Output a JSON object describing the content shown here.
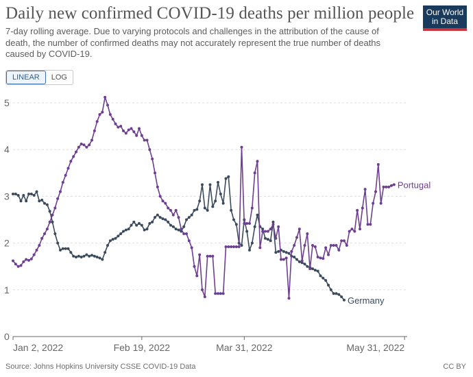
{
  "header": {
    "title": "Daily new confirmed COVID-19 deaths per million people",
    "subtitle": "7-day rolling average. Due to varying protocols and challenges in the attribution of the cause of death, the number of confirmed deaths may not accurately represent the true number of deaths caused by COVID-19."
  },
  "logo": {
    "line1": "Our World",
    "line2": "in Data"
  },
  "controls": {
    "linear_label": "LINEAR",
    "log_label": "LOG",
    "selected": "LINEAR"
  },
  "footer": {
    "source": "Source: Johns Hopkins University CSSE COVID-19 Data",
    "license": "CC BY"
  },
  "colors": {
    "Portugal": "#6d3e91",
    "Germany": "#3b4a5c",
    "grid": "#dddddd",
    "axis": "#666666"
  },
  "chart_data": {
    "type": "line",
    "title": "Daily new confirmed COVID-19 deaths per million people",
    "xlabel": "",
    "ylabel": "",
    "ylim": [
      0,
      5
    ],
    "yticks": [
      0,
      1,
      2,
      3,
      4,
      5
    ],
    "grid": "horizontal-dashed",
    "legend": "end-of-line labels",
    "xticks": [
      {
        "day": 1,
        "label": "Jan 2, 2022"
      },
      {
        "day": 50,
        "label": "Feb 19, 2022"
      },
      {
        "day": 89,
        "label": "Mar 31, 2022"
      },
      {
        "day": 150,
        "label": "May 31, 2022"
      }
    ],
    "x_range_days": [
      1,
      151
    ],
    "series": [
      {
        "name": "Portugal",
        "points": [
          [
            1,
            1.62
          ],
          [
            2,
            1.55
          ],
          [
            3,
            1.5
          ],
          [
            4,
            1.52
          ],
          [
            5,
            1.6
          ],
          [
            6,
            1.65
          ],
          [
            7,
            1.63
          ],
          [
            8,
            1.66
          ],
          [
            9,
            1.75
          ],
          [
            10,
            1.85
          ],
          [
            11,
            1.95
          ],
          [
            12,
            2.1
          ],
          [
            13,
            2.2
          ],
          [
            14,
            2.3
          ],
          [
            15,
            2.45
          ],
          [
            16,
            2.6
          ],
          [
            17,
            2.75
          ],
          [
            18,
            2.95
          ],
          [
            19,
            3.1
          ],
          [
            20,
            3.3
          ],
          [
            21,
            3.45
          ],
          [
            22,
            3.6
          ],
          [
            23,
            3.75
          ],
          [
            24,
            3.85
          ],
          [
            25,
            3.95
          ],
          [
            26,
            4.05
          ],
          [
            27,
            4.12
          ],
          [
            28,
            4.1
          ],
          [
            29,
            4.05
          ],
          [
            30,
            4.1
          ],
          [
            31,
            4.2
          ],
          [
            32,
            4.4
          ],
          [
            33,
            4.6
          ],
          [
            34,
            4.75
          ],
          [
            35,
            4.8
          ],
          [
            36,
            5.12
          ],
          [
            37,
            4.95
          ],
          [
            38,
            4.75
          ],
          [
            39,
            4.65
          ],
          [
            40,
            4.55
          ],
          [
            41,
            4.48
          ],
          [
            42,
            4.5
          ],
          [
            43,
            4.4
          ],
          [
            44,
            4.35
          ],
          [
            45,
            4.42
          ],
          [
            46,
            4.45
          ],
          [
            47,
            4.38
          ],
          [
            48,
            4.3
          ],
          [
            49,
            4.45
          ],
          [
            50,
            4.3
          ],
          [
            51,
            4.2
          ],
          [
            52,
            4.2
          ],
          [
            53,
            4.0
          ],
          [
            54,
            3.8
          ],
          [
            55,
            3.5
          ],
          [
            56,
            3.2
          ],
          [
            57,
            3.0
          ],
          [
            58,
            2.9
          ],
          [
            59,
            2.85
          ],
          [
            60,
            2.75
          ],
          [
            61,
            2.7
          ],
          [
            62,
            2.6
          ],
          [
            63,
            2.7
          ],
          [
            64,
            2.55
          ],
          [
            65,
            2.3
          ],
          [
            66,
            2.2
          ],
          [
            67,
            2.2
          ],
          [
            68,
            2.05
          ],
          [
            69,
            1.9
          ],
          [
            70,
            1.5
          ],
          [
            71,
            1.3
          ],
          [
            72,
            1.75
          ],
          [
            73,
            1.0
          ],
          [
            74,
            0.85
          ],
          [
            75,
            1.72
          ],
          [
            76,
            1.72
          ],
          [
            77,
            1.72
          ],
          [
            78,
            0.92
          ],
          [
            79,
            0.92
          ],
          [
            80,
            0.92
          ],
          [
            81,
            0.92
          ],
          [
            82,
            1.92
          ],
          [
            83,
            1.92
          ],
          [
            84,
            1.92
          ],
          [
            85,
            1.92
          ],
          [
            86,
            1.92
          ],
          [
            87,
            1.92
          ],
          [
            88,
            4.05
          ],
          [
            89,
            2.42
          ],
          [
            90,
            2.42
          ],
          [
            91,
            2.42
          ],
          [
            92,
            2.75
          ],
          [
            93,
            3.5
          ],
          [
            94,
            3.75
          ],
          [
            95,
            1.9
          ],
          [
            96,
            2.25
          ],
          [
            97,
            2.25
          ],
          [
            98,
            2.25
          ],
          [
            99,
            2.3
          ],
          [
            100,
            2.4
          ],
          [
            101,
            2.1
          ],
          [
            102,
            2.35
          ],
          [
            103,
            1.65
          ],
          [
            104,
            1.65
          ],
          [
            105,
            1.68
          ],
          [
            106,
            0.82
          ],
          [
            107,
            1.82
          ],
          [
            108,
            1.95
          ],
          [
            109,
            2.12
          ],
          [
            110,
            2.3
          ],
          [
            111,
            1.62
          ],
          [
            112,
            1.95
          ],
          [
            113,
            2.2
          ],
          [
            114,
            1.45
          ],
          [
            115,
            1.95
          ],
          [
            116,
            1.92
          ],
          [
            117,
            1.7
          ],
          [
            118,
            1.68
          ],
          [
            119,
            1.67
          ],
          [
            120,
            1.9
          ],
          [
            121,
            1.75
          ],
          [
            122,
            1.95
          ],
          [
            123,
            1.95
          ],
          [
            124,
            1.95
          ],
          [
            125,
            1.85
          ],
          [
            126,
            2.05
          ],
          [
            127,
            2.05
          ],
          [
            128,
            1.95
          ],
          [
            129,
            2.25
          ],
          [
            130,
            2.3
          ],
          [
            131,
            2.25
          ],
          [
            132,
            2.7
          ],
          [
            133,
            2.3
          ],
          [
            134,
            2.75
          ],
          [
            135,
            3.15
          ],
          [
            136,
            2.4
          ],
          [
            137,
            2.4
          ],
          [
            138,
            2.85
          ],
          [
            139,
            3.1
          ],
          [
            140,
            3.68
          ],
          [
            141,
            2.85
          ],
          [
            142,
            3.2
          ],
          [
            143,
            3.2
          ],
          [
            144,
            3.2
          ],
          [
            145,
            3.23
          ],
          [
            146,
            3.25
          ]
        ]
      },
      {
        "name": "Germany",
        "points": [
          [
            1,
            3.05
          ],
          [
            2,
            3.05
          ],
          [
            3,
            3.02
          ],
          [
            4,
            2.9
          ],
          [
            5,
            3.02
          ],
          [
            6,
            2.9
          ],
          [
            7,
            3.05
          ],
          [
            8,
            3.05
          ],
          [
            9,
            3.02
          ],
          [
            10,
            3.1
          ],
          [
            11,
            2.9
          ],
          [
            12,
            2.92
          ],
          [
            13,
            2.85
          ],
          [
            14,
            2.82
          ],
          [
            15,
            2.68
          ],
          [
            16,
            2.45
          ],
          [
            17,
            2.2
          ],
          [
            18,
            2.0
          ],
          [
            19,
            1.85
          ],
          [
            20,
            1.88
          ],
          [
            21,
            1.88
          ],
          [
            22,
            1.88
          ],
          [
            23,
            1.8
          ],
          [
            24,
            1.72
          ],
          [
            25,
            1.7
          ],
          [
            26,
            1.72
          ],
          [
            27,
            1.7
          ],
          [
            28,
            1.72
          ],
          [
            29,
            1.75
          ],
          [
            30,
            1.72
          ],
          [
            31,
            1.74
          ],
          [
            32,
            1.72
          ],
          [
            33,
            1.7
          ],
          [
            34,
            1.68
          ],
          [
            35,
            1.65
          ],
          [
            36,
            1.8
          ],
          [
            37,
            1.95
          ],
          [
            38,
            2.05
          ],
          [
            39,
            2.08
          ],
          [
            40,
            2.1
          ],
          [
            41,
            2.15
          ],
          [
            42,
            2.2
          ],
          [
            43,
            2.25
          ],
          [
            44,
            2.28
          ],
          [
            45,
            2.3
          ],
          [
            46,
            2.38
          ],
          [
            47,
            2.45
          ],
          [
            48,
            2.38
          ],
          [
            49,
            2.42
          ],
          [
            50,
            2.38
          ],
          [
            51,
            2.28
          ],
          [
            52,
            2.3
          ],
          [
            53,
            2.42
          ],
          [
            54,
            2.45
          ],
          [
            55,
            2.55
          ],
          [
            56,
            2.6
          ],
          [
            57,
            2.55
          ],
          [
            58,
            2.52
          ],
          [
            59,
            2.5
          ],
          [
            60,
            2.45
          ],
          [
            61,
            2.38
          ],
          [
            62,
            2.35
          ],
          [
            63,
            2.3
          ],
          [
            64,
            2.28
          ],
          [
            65,
            2.25
          ],
          [
            66,
            2.35
          ],
          [
            67,
            2.5
          ],
          [
            68,
            2.55
          ],
          [
            69,
            2.6
          ],
          [
            70,
            2.7
          ],
          [
            71,
            2.72
          ],
          [
            72,
            2.9
          ],
          [
            73,
            3.25
          ],
          [
            74,
            2.75
          ],
          [
            75,
            2.7
          ],
          [
            76,
            3.25
          ],
          [
            77,
            2.78
          ],
          [
            78,
            2.9
          ],
          [
            79,
            3.3
          ],
          [
            80,
            3.05
          ],
          [
            81,
            2.85
          ],
          [
            82,
            3.38
          ],
          [
            83,
            3.42
          ],
          [
            84,
            2.7
          ],
          [
            85,
            2.5
          ],
          [
            86,
            2.4
          ],
          [
            87,
            2.0
          ],
          [
            88,
            1.95
          ],
          [
            89,
            2.5
          ],
          [
            90,
            2.25
          ],
          [
            91,
            1.85
          ],
          [
            92,
            2.0
          ],
          [
            93,
            2.35
          ],
          [
            94,
            2.6
          ],
          [
            95,
            2.35
          ],
          [
            96,
            2.3
          ],
          [
            97,
            2.1
          ],
          [
            98,
            2.08
          ],
          [
            99,
            2.05
          ],
          [
            100,
            2.45
          ],
          [
            101,
            1.8
          ],
          [
            102,
            1.82
          ],
          [
            103,
            1.85
          ],
          [
            104,
            1.82
          ],
          [
            105,
            1.8
          ],
          [
            106,
            1.78
          ],
          [
            107,
            1.72
          ],
          [
            108,
            1.7
          ],
          [
            109,
            1.65
          ],
          [
            110,
            1.6
          ],
          [
            111,
            1.58
          ],
          [
            112,
            1.55
          ],
          [
            113,
            1.5
          ],
          [
            114,
            1.48
          ],
          [
            115,
            1.45
          ],
          [
            116,
            1.42
          ],
          [
            117,
            1.4
          ],
          [
            118,
            1.3
          ],
          [
            119,
            1.25
          ],
          [
            120,
            1.2
          ],
          [
            121,
            1.1
          ],
          [
            122,
            1.0
          ],
          [
            123,
            0.92
          ],
          [
            124,
            0.92
          ],
          [
            125,
            0.9
          ],
          [
            126,
            0.85
          ],
          [
            127,
            0.78
          ]
        ]
      }
    ]
  }
}
